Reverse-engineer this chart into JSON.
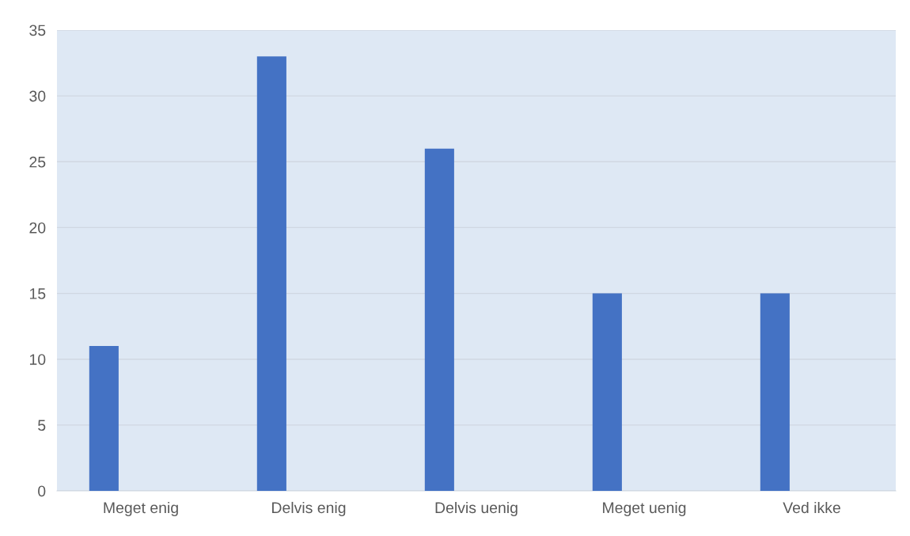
{
  "chart_data": {
    "type": "bar",
    "categories": [
      "Meget enig",
      "Delvis enig",
      "Delvis uenig",
      "Meget uenig",
      "Ved ikke"
    ],
    "values": [
      11,
      33,
      26,
      15,
      15
    ],
    "color": "#4472c4",
    "ylim": [
      0,
      35
    ],
    "yticks": [
      0,
      5,
      10,
      15,
      20,
      25,
      30,
      35
    ],
    "grid": "y",
    "legend": false
  }
}
